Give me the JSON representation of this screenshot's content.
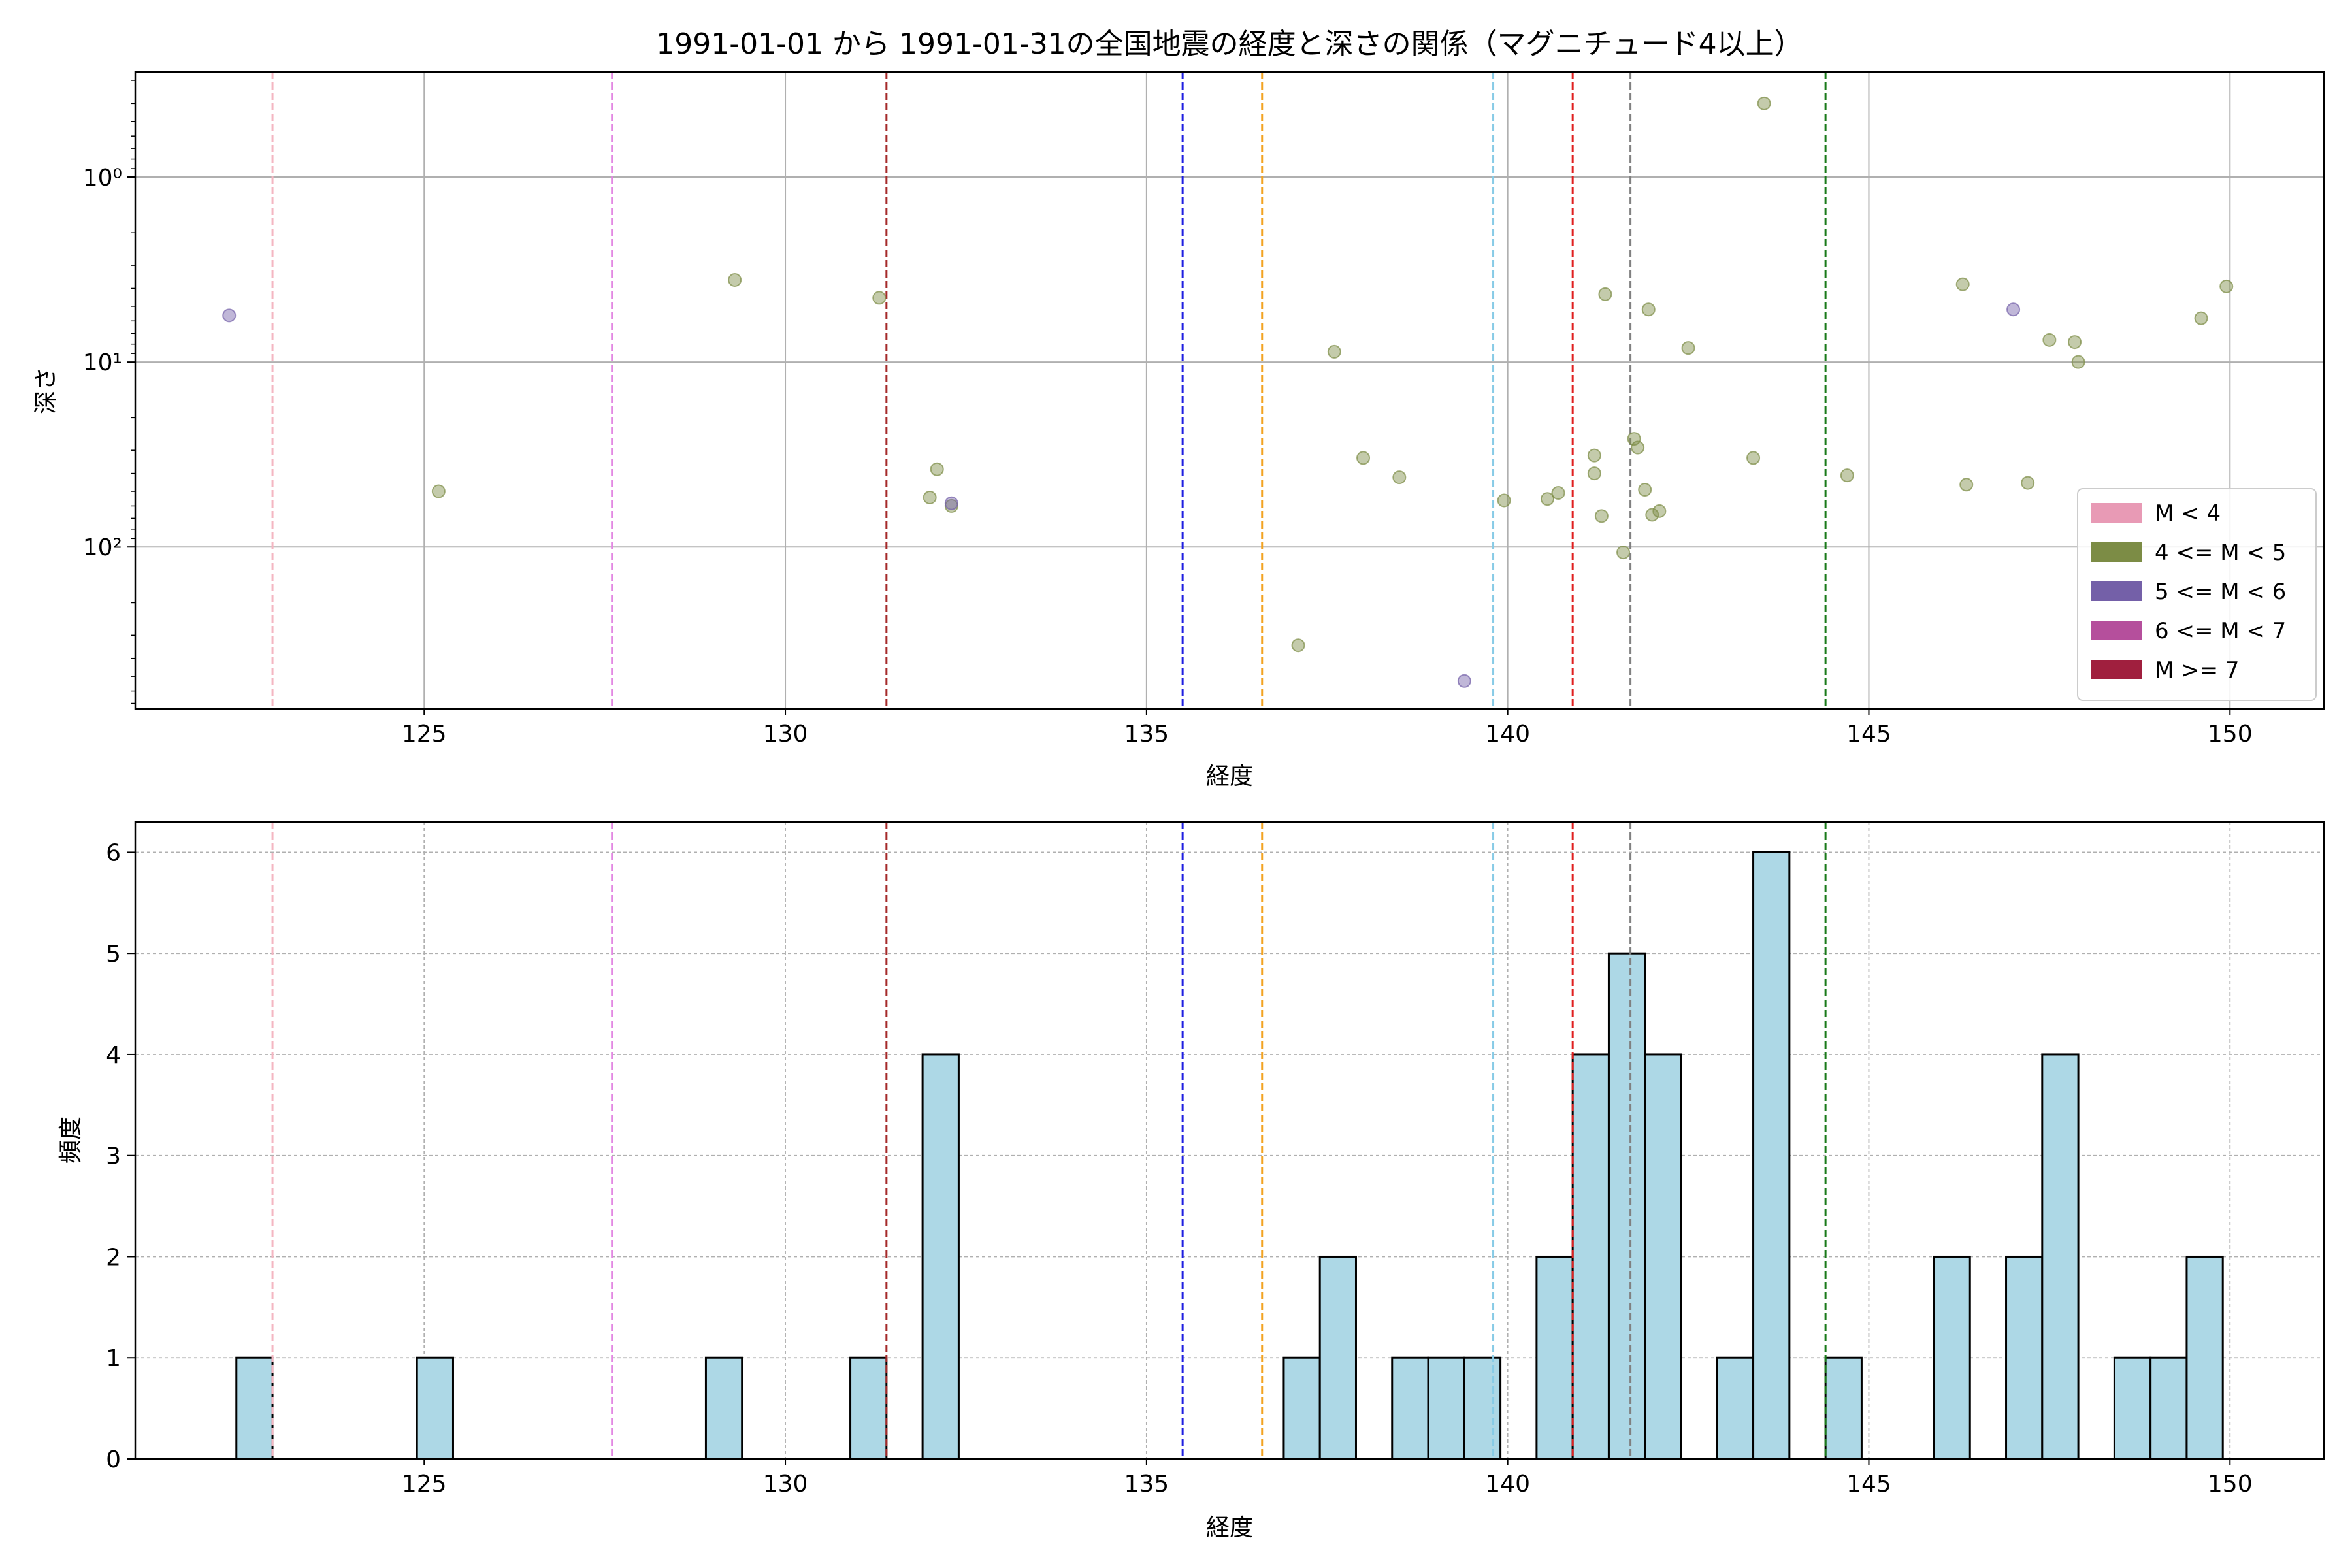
{
  "chart_data": [
    {
      "type": "scatter",
      "title": "1991-01-01 から 1991-01-31の全国地震の経度と深さの関係（マグニチュード4以上）",
      "xlabel": "経度",
      "ylabel": "深さ",
      "xlim": [
        121,
        151.3
      ],
      "ylim": [
        750,
        0.27
      ],
      "yscale": "log",
      "yinverted": true,
      "xticks": [
        125,
        130,
        135,
        140,
        145,
        150
      ],
      "yticks": [
        {
          "value": 1,
          "label": "10⁰"
        },
        {
          "value": 10,
          "label": "10¹"
        },
        {
          "value": 100,
          "label": "10²"
        }
      ],
      "grid": true,
      "legend_position": "lower-right",
      "legend": [
        {
          "label": "M < 4",
          "color": "#e89ab5"
        },
        {
          "label": "4 <= M < 5",
          "color": "#7c8c45"
        },
        {
          "label": "5 <= M < 6",
          "color": "#7460a8"
        },
        {
          "label": "6 <= M < 7",
          "color": "#b54f9c"
        },
        {
          "label": "M >= 7",
          "color": "#a01f3e"
        }
      ],
      "vlines": [
        {
          "x": 122.9,
          "color": "#f4b6c2"
        },
        {
          "x": 127.6,
          "color": "#e288e2"
        },
        {
          "x": 131.4,
          "color": "#a52a2a"
        },
        {
          "x": 135.5,
          "color": "#1f1fe0"
        },
        {
          "x": 136.6,
          "color": "#f2a322"
        },
        {
          "x": 139.8,
          "color": "#87cbe6"
        },
        {
          "x": 140.9,
          "color": "#e02020"
        },
        {
          "x": 141.7,
          "color": "#808080"
        },
        {
          "x": 144.4,
          "color": "#1a7a1a"
        }
      ],
      "series": [
        {
          "magnitude_class": "4 <= M < 5",
          "color": "#7c8c45",
          "points": [
            {
              "x": 125.2,
              "y": 50
            },
            {
              "x": 129.3,
              "y": 3.6
            },
            {
              "x": 131.3,
              "y": 4.5
            },
            {
              "x": 132.1,
              "y": 38
            },
            {
              "x": 132.0,
              "y": 54
            },
            {
              "x": 132.3,
              "y": 60
            },
            {
              "x": 137.1,
              "y": 340
            },
            {
              "x": 137.6,
              "y": 8.8
            },
            {
              "x": 138.0,
              "y": 33
            },
            {
              "x": 138.5,
              "y": 42
            },
            {
              "x": 139.95,
              "y": 56
            },
            {
              "x": 140.55,
              "y": 55
            },
            {
              "x": 140.7,
              "y": 51
            },
            {
              "x": 141.2,
              "y": 32
            },
            {
              "x": 141.2,
              "y": 40
            },
            {
              "x": 141.3,
              "y": 68
            },
            {
              "x": 141.35,
              "y": 4.3
            },
            {
              "x": 141.6,
              "y": 107
            },
            {
              "x": 141.75,
              "y": 26
            },
            {
              "x": 141.8,
              "y": 29
            },
            {
              "x": 141.9,
              "y": 49
            },
            {
              "x": 142.0,
              "y": 67
            },
            {
              "x": 141.95,
              "y": 5.2
            },
            {
              "x": 142.1,
              "y": 64
            },
            {
              "x": 142.5,
              "y": 8.4
            },
            {
              "x": 143.4,
              "y": 33
            },
            {
              "x": 143.55,
              "y": 0.4
            },
            {
              "x": 144.7,
              "y": 41
            },
            {
              "x": 146.3,
              "y": 3.8
            },
            {
              "x": 146.35,
              "y": 46
            },
            {
              "x": 147.2,
              "y": 45
            },
            {
              "x": 147.5,
              "y": 7.6
            },
            {
              "x": 147.85,
              "y": 7.8
            },
            {
              "x": 147.9,
              "y": 10
            },
            {
              "x": 149.6,
              "y": 5.8
            },
            {
              "x": 149.95,
              "y": 3.9
            }
          ]
        },
        {
          "magnitude_class": "5 <= M < 6",
          "color": "#7460a8",
          "points": [
            {
              "x": 122.3,
              "y": 5.6
            },
            {
              "x": 132.3,
              "y": 58
            },
            {
              "x": 139.4,
              "y": 530
            },
            {
              "x": 147.0,
              "y": 5.2
            }
          ]
        }
      ]
    },
    {
      "type": "bar",
      "xlabel": "経度",
      "ylabel": "頻度",
      "xlim": [
        121,
        151.3
      ],
      "ylim": [
        0,
        6.3
      ],
      "xticks": [
        125,
        130,
        135,
        140,
        145,
        150
      ],
      "yticks": [
        0,
        1,
        2,
        3,
        4,
        5,
        6
      ],
      "grid": true,
      "bar_color": "#add8e6",
      "bin_width": 0.5,
      "vlines": [
        {
          "x": 122.9,
          "color": "#f4b6c2"
        },
        {
          "x": 127.6,
          "color": "#e288e2"
        },
        {
          "x": 131.4,
          "color": "#a52a2a"
        },
        {
          "x": 135.5,
          "color": "#1f1fe0"
        },
        {
          "x": 136.6,
          "color": "#f2a322"
        },
        {
          "x": 139.8,
          "color": "#87cbe6"
        },
        {
          "x": 140.9,
          "color": "#e02020"
        },
        {
          "x": 141.7,
          "color": "#808080"
        },
        {
          "x": 144.4,
          "color": "#1a7a1a"
        }
      ],
      "bins": [
        {
          "x0": 122.4,
          "value": 1
        },
        {
          "x0": 124.9,
          "value": 1
        },
        {
          "x0": 128.9,
          "value": 1
        },
        {
          "x0": 130.9,
          "value": 1
        },
        {
          "x0": 131.9,
          "value": 4
        },
        {
          "x0": 136.9,
          "value": 1
        },
        {
          "x0": 137.4,
          "value": 2
        },
        {
          "x0": 138.4,
          "value": 1
        },
        {
          "x0": 138.9,
          "value": 1
        },
        {
          "x0": 139.4,
          "value": 1
        },
        {
          "x0": 140.4,
          "value": 2
        },
        {
          "x0": 140.9,
          "value": 4
        },
        {
          "x0": 141.4,
          "value": 5
        },
        {
          "x0": 141.9,
          "value": 4
        },
        {
          "x0": 142.9,
          "value": 1
        },
        {
          "x0": 143.4,
          "value": 6
        },
        {
          "x0": 144.4,
          "value": 1
        },
        {
          "x0": 145.9,
          "value": 2
        },
        {
          "x0": 146.9,
          "value": 2
        },
        {
          "x0": 147.4,
          "value": 4
        },
        {
          "x0": 148.4,
          "value": 1
        },
        {
          "x0": 148.9,
          "value": 1
        },
        {
          "x0": 149.4,
          "value": 2
        }
      ]
    }
  ]
}
